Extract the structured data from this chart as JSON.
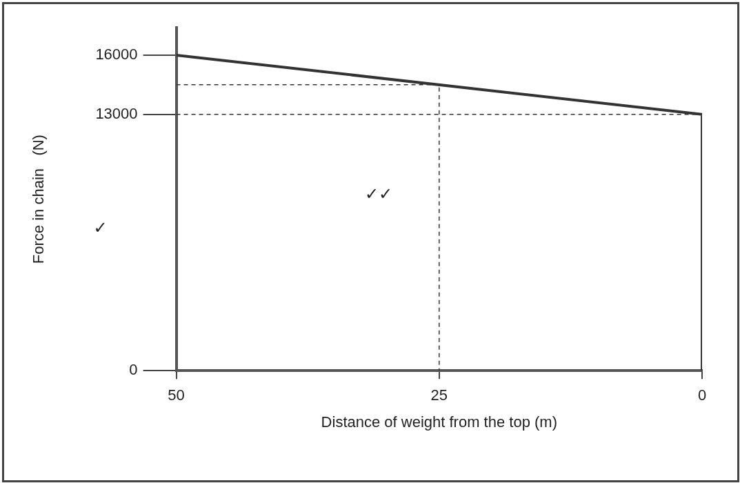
{
  "chart_data": {
    "type": "line",
    "xlabel": "Distance of weight from the top (m)",
    "ylabel": "Force in chain   (N)",
    "xlim": [
      50,
      0
    ],
    "xticks": [
      50,
      25,
      0
    ],
    "ylim": [
      0,
      17400
    ],
    "yticks": [
      0,
      13000,
      16000
    ],
    "grid": false,
    "marker": "none",
    "series": [
      {
        "type": "line",
        "color": "#333333",
        "x": [
          50,
          0,
          0
        ],
        "values": [
          16000,
          13000,
          0
        ],
        "line_style": "solid"
      },
      {
        "type": "line",
        "color": "#333333",
        "x": [
          50,
          25,
          25
        ],
        "values": [
          14500,
          14500,
          0
        ],
        "line_style": "dashed"
      },
      {
        "type": "line",
        "color": "#333333",
        "x": [
          50,
          0
        ],
        "values": [
          13000,
          13000
        ],
        "line_style": "dashed"
      }
    ],
    "annotations": [
      "✓",
      "✓✓"
    ]
  }
}
